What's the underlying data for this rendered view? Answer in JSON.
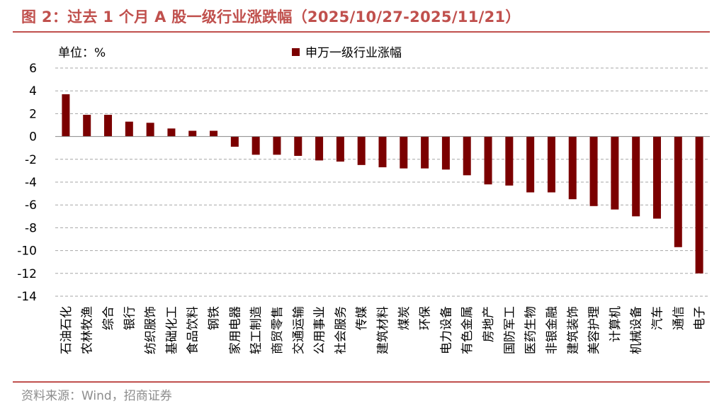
{
  "figure": {
    "title": "图 2：过去 1 个月 A 股一级行业涨跌幅（2025/10/27-2025/11/21）",
    "source": "资料来源：Wind，招商证券"
  },
  "chart_data": {
    "type": "bar",
    "unit_label": "单位：%",
    "series": [
      {
        "name": "申万一级行业涨幅",
        "color": "#7B0000",
        "values": [
          3.7,
          1.9,
          1.9,
          1.3,
          1.2,
          0.7,
          0.5,
          0.5,
          -0.9,
          -1.6,
          -1.6,
          -1.7,
          -2.1,
          -2.2,
          -2.5,
          -2.7,
          -2.8,
          -2.8,
          -2.9,
          -3.4,
          -4.2,
          -4.3,
          -4.9,
          -4.9,
          -5.5,
          -6.1,
          -6.4,
          -7.0,
          -7.2,
          -9.7,
          -12.0
        ]
      }
    ],
    "categories": [
      "石油石化",
      "农林牧渔",
      "综合",
      "银行",
      "纺织服饰",
      "基础化工",
      "食品饮料",
      "钢铁",
      "家用电器",
      "轻工制造",
      "商贸零售",
      "交通运输",
      "公用事业",
      "社会服务",
      "传媒",
      "建筑材料",
      "煤炭",
      "环保",
      "电力设备",
      "有色金属",
      "房地产",
      "国防军工",
      "医药生物",
      "非银金融",
      "建筑装饰",
      "美容护理",
      "计算机",
      "机械设备",
      "汽车",
      "通信",
      "电子"
    ],
    "ylim": [
      -14,
      6
    ],
    "yticks": [
      6,
      4,
      2,
      0,
      -2,
      -4,
      -6,
      -8,
      -10,
      -12,
      -14
    ],
    "grid": "horizontal-dashed",
    "legend_position": "top-center"
  }
}
